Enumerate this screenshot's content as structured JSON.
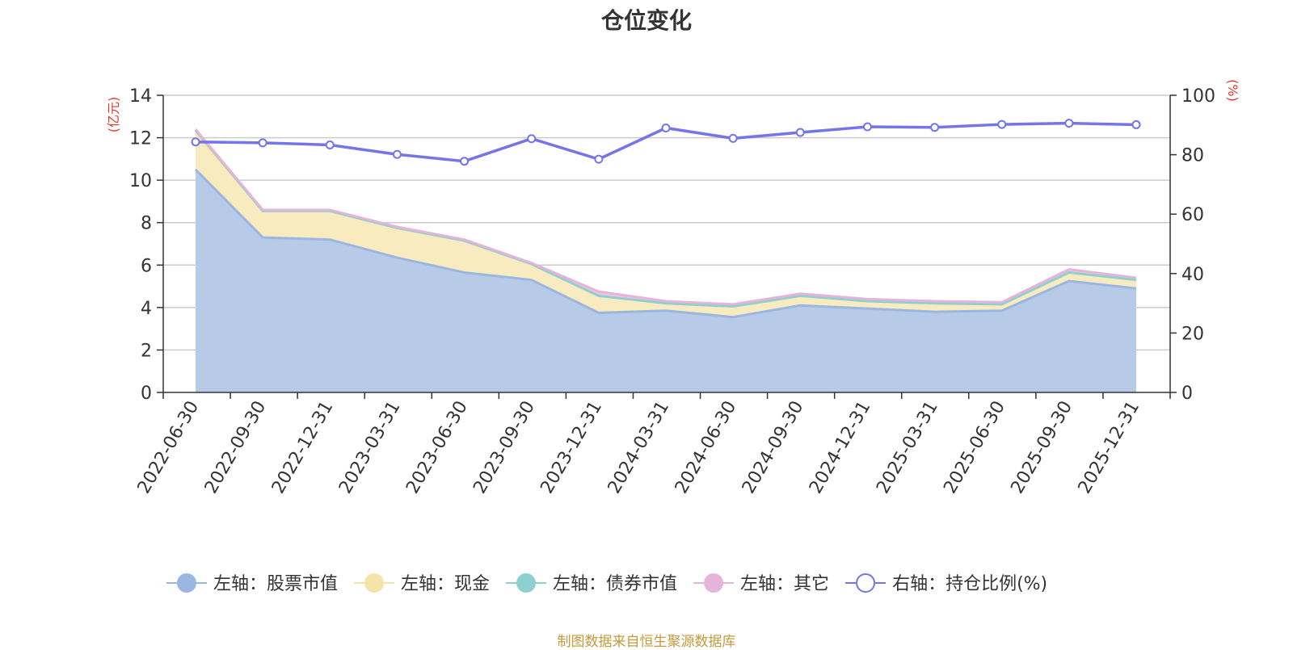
{
  "chart_data": {
    "type": "area",
    "title": "仓位变化",
    "source_note": "制图数据来自恒生聚源数据库",
    "left_axis": {
      "unit": "(亿元)",
      "ylim": [
        0,
        14
      ],
      "ticks": [
        0,
        2,
        4,
        6,
        8,
        10,
        12,
        14
      ]
    },
    "right_axis": {
      "unit": "(%)",
      "ylim": [
        0,
        100
      ],
      "ticks": [
        0,
        20,
        40,
        60,
        80,
        100
      ]
    },
    "categories": [
      "2022-06-30",
      "2022-09-30",
      "2022-12-31",
      "2023-03-31",
      "2023-06-30",
      "2023-09-30",
      "2023-12-31",
      "2024-03-31",
      "2024-06-30",
      "2024-09-30",
      "2024-12-31",
      "2025-03-31",
      "2025-06-30",
      "2025-09-30",
      "2025-12-31"
    ],
    "stacked_series": [
      {
        "name": "左轴：股票市值",
        "color": "#9bb6e0",
        "fill": "#b7cbe9",
        "values": [
          10.5,
          7.3,
          7.2,
          6.35,
          5.65,
          5.3,
          3.75,
          3.85,
          3.55,
          4.1,
          3.95,
          3.8,
          3.85,
          5.25,
          4.9
        ]
      },
      {
        "name": "左轴：现金",
        "color": "#f5e4a8",
        "fill": "#f8ebbf",
        "values": [
          1.75,
          1.25,
          1.35,
          1.4,
          1.5,
          0.75,
          0.8,
          0.35,
          0.5,
          0.45,
          0.35,
          0.4,
          0.3,
          0.4,
          0.4
        ]
      },
      {
        "name": "左轴：债券市值",
        "color": "#8ecfd0",
        "fill": "#a9dcdc",
        "values": [
          0.1,
          0,
          0,
          0,
          0,
          0,
          0,
          0,
          0,
          0,
          0,
          0,
          0,
          0,
          0
        ]
      },
      {
        "name": "左轴：其它",
        "color": "#e6b3d9",
        "fill": "#eec6e3",
        "values": [
          0.05,
          0.05,
          0.05,
          0.05,
          0.05,
          0.05,
          0.2,
          0.1,
          0.1,
          0.1,
          0.1,
          0.1,
          0.1,
          0.15,
          0.1
        ]
      }
    ],
    "line_series": [
      {
        "name": "右轴：持仓比例(%)",
        "color": "#7375e8",
        "axis": "right",
        "values": [
          84.3,
          84.0,
          83.3,
          80.1,
          77.8,
          85.4,
          78.5,
          89.0,
          85.5,
          87.5,
          89.4,
          89.2,
          90.2,
          90.6,
          90.1
        ]
      }
    ],
    "colors": {
      "title": "#333333",
      "unit": "#e8372c",
      "source": "#c49a3a",
      "grid": "#cccccc",
      "axis": "#333333"
    },
    "legend_position": "bottom",
    "grid": true
  }
}
